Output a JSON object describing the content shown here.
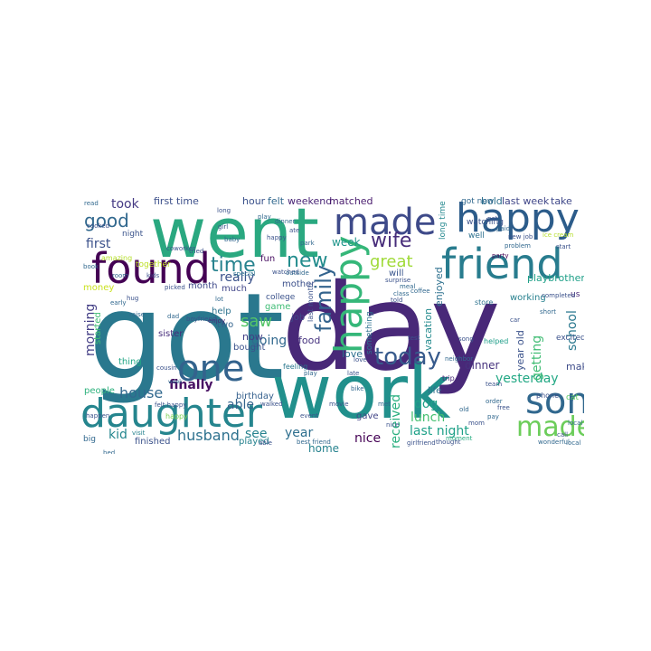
{
  "words": [
    {
      "text": "got",
      "color": "#2a788e"
    },
    {
      "text": "day",
      "color": "#482878"
    },
    {
      "text": "went",
      "color": "#2aa880"
    },
    {
      "text": "work",
      "color": "#21908c"
    },
    {
      "text": "made",
      "color": "#3e4a89"
    },
    {
      "text": "happy",
      "color": "#2c5c8a"
    },
    {
      "text": "found",
      "color": "#440154"
    },
    {
      "text": "friend",
      "color": "#287c8e"
    },
    {
      "text": "daughter",
      "color": "#25858e"
    },
    {
      "text": "happy",
      "color": "#35b779"
    },
    {
      "text": "one",
      "color": "#33638d"
    },
    {
      "text": "son",
      "color": "#31688e"
    },
    {
      "text": "made",
      "color": "#6ccd5a"
    },
    {
      "text": "family",
      "color": "#33638d"
    },
    {
      "text": "today",
      "color": "#375a8c"
    },
    {
      "text": "wife",
      "color": "#472c7a"
    },
    {
      "text": "good",
      "color": "#31688e"
    },
    {
      "text": "new",
      "color": "#228c8d"
    },
    {
      "text": "time",
      "color": "#26828e"
    },
    {
      "text": "house",
      "color": "#31688e"
    },
    {
      "text": "husband",
      "color": "#2d718e"
    },
    {
      "text": "school",
      "color": "#2a788e"
    },
    {
      "text": "great",
      "color": "#a0da39"
    },
    {
      "text": "took",
      "color": "#443983"
    },
    {
      "text": "first",
      "color": "#3b518b"
    },
    {
      "text": "last night",
      "color": "#1fa188"
    },
    {
      "text": "yesterday",
      "color": "#22a884"
    },
    {
      "text": "morning",
      "color": "#433e85"
    },
    {
      "text": "saw",
      "color": "#54c568"
    },
    {
      "text": "able",
      "color": "#33638d"
    },
    {
      "text": "going",
      "color": "#31688e"
    },
    {
      "text": "getting",
      "color": "#3fbc73"
    },
    {
      "text": "dinner",
      "color": "#46327e"
    },
    {
      "text": "dog",
      "color": "#1fa188"
    },
    {
      "text": "lunch",
      "color": "#44bf70"
    },
    {
      "text": "nice",
      "color": "#440154"
    },
    {
      "text": "kid",
      "color": "#24868e"
    },
    {
      "text": "finally",
      "color": "#471063"
    },
    {
      "text": "really",
      "color": "#3b528b"
    },
    {
      "text": "year",
      "color": "#2e6f8e"
    },
    {
      "text": "see",
      "color": "#26828e"
    },
    {
      "text": "received",
      "color": "#29af7f"
    },
    {
      "text": "make",
      "color": "#3e4c8a"
    },
    {
      "text": "week",
      "color": "#1f958b"
    },
    {
      "text": "home",
      "color": "#26828e"
    },
    {
      "text": "food",
      "color": "#46337f"
    },
    {
      "text": "love",
      "color": "#2d708e"
    },
    {
      "text": "now",
      "color": "#423f85"
    },
    {
      "text": "first time",
      "color": "#3c4f8a"
    },
    {
      "text": "hour",
      "color": "#3b528b"
    },
    {
      "text": "felt",
      "color": "#31688e"
    },
    {
      "text": "weekend",
      "color": "#482475"
    },
    {
      "text": "matched",
      "color": "#481b6d"
    },
    {
      "text": "bold",
      "color": "#2d708e"
    },
    {
      "text": "last week",
      "color": "#404688"
    },
    {
      "text": "take",
      "color": "#3f4889"
    },
    {
      "text": "playbrother",
      "color": "#1fa088"
    },
    {
      "text": "year old",
      "color": "#3b528b"
    },
    {
      "text": "vacation",
      "color": "#238a8d"
    },
    {
      "text": "enjoyed",
      "color": "#2d708e"
    },
    {
      "text": "working",
      "color": "#27808e"
    },
    {
      "text": "birthday",
      "color": "#35608d"
    },
    {
      "text": "bought",
      "color": "#3b528b"
    },
    {
      "text": "sister",
      "color": "#472d7b"
    },
    {
      "text": "game",
      "color": "#3dbc74"
    },
    {
      "text": "people",
      "color": "#2db27d"
    },
    {
      "text": "thing",
      "color": "#21a685"
    },
    {
      "text": "finished",
      "color": "#3b528b"
    },
    {
      "text": "played",
      "color": "#26828e"
    },
    {
      "text": "gave",
      "color": "#414487"
    },
    {
      "text": "job",
      "color": "#3e4a89"
    },
    {
      "text": "life",
      "color": "#2e6e8e"
    },
    {
      "text": "will",
      "color": "#39558c"
    },
    {
      "text": "mother",
      "color": "#3c508b"
    },
    {
      "text": "fun",
      "color": "#470e61"
    },
    {
      "text": "help",
      "color": "#2c728e"
    },
    {
      "text": "two",
      "color": "#33638d"
    },
    {
      "text": "much",
      "color": "#404588"
    },
    {
      "text": "month",
      "color": "#3e4989"
    },
    {
      "text": "money",
      "color": "#cae11f"
    },
    {
      "text": "night",
      "color": "#3a538b"
    },
    {
      "text": "together",
      "color": "#bddf26"
    },
    {
      "text": "started",
      "color": "#3fbc73"
    },
    {
      "text": "big",
      "color": "#31688e"
    },
    {
      "text": "college",
      "color": "#3b528b"
    },
    {
      "text": "something",
      "color": "#2d708e"
    },
    {
      "text": "long time",
      "color": "#23888e"
    },
    {
      "text": "got new",
      "color": "#31688e"
    },
    {
      "text": "watching",
      "color": "#3b528b"
    },
    {
      "text": "well",
      "color": "#2d708e"
    },
    {
      "text": "us",
      "color": "#482878"
    },
    {
      "text": "cat",
      "color": "#5ec962"
    },
    {
      "text": "excited",
      "color": "#3b528b"
    },
    {
      "text": "trip",
      "color": "#482878"
    },
    {
      "text": "helped",
      "color": "#1f9e89"
    },
    {
      "text": "store",
      "color": "#2c728e"
    },
    {
      "text": "phone",
      "color": "#3b528b"
    },
    {
      "text": "amazing",
      "color": "#b5de2b"
    },
    {
      "text": "happy",
      "color": "#7ad151"
    },
    {
      "text": "feeling",
      "color": "#2a788e"
    },
    {
      "text": "last month",
      "color": "#3b528b"
    },
    {
      "text": "special",
      "color": "#2c728e"
    },
    {
      "text": "watched",
      "color": "#3b528b"
    },
    {
      "text": "outside",
      "color": "#31688e"
    },
    {
      "text": "surprise",
      "color": "#3b528b"
    },
    {
      "text": "party",
      "color": "#440154"
    },
    {
      "text": "moment",
      "color": "#27ad81"
    },
    {
      "text": "thought",
      "color": "#3b528b"
    },
    {
      "text": "local",
      "color": "#31688e"
    },
    {
      "text": "coworker",
      "color": "#3b528b"
    },
    {
      "text": "visit",
      "color": "#26828e"
    },
    {
      "text": "enjoy",
      "color": "#482878"
    },
    {
      "text": "boyfriend",
      "color": "#3b528b"
    },
    {
      "text": "cousin",
      "color": "#3b528b"
    },
    {
      "text": "week",
      "color": "#31688e"
    },
    {
      "text": "walked",
      "color": "#3b528b"
    },
    {
      "text": "play",
      "color": "#31688e"
    },
    {
      "text": "event",
      "color": "#3b528b"
    },
    {
      "text": "movie",
      "color": "#3b528b"
    },
    {
      "text": "bike",
      "color": "#31688e"
    },
    {
      "text": "late",
      "color": "#3b528b"
    },
    {
      "text": "test",
      "color": "#3b528b"
    },
    {
      "text": "class",
      "color": "#31688e"
    },
    {
      "text": "team",
      "color": "#3b528b"
    },
    {
      "text": "neighbor",
      "color": "#31688e"
    },
    {
      "text": "girlfriend",
      "color": "#3b528b"
    },
    {
      "text": "meal",
      "color": "#31688e"
    },
    {
      "text": "told",
      "color": "#3b528b"
    },
    {
      "text": "coffee",
      "color": "#31688e"
    },
    {
      "text": "completed",
      "color": "#3b528b"
    },
    {
      "text": "problem",
      "color": "#31688e"
    },
    {
      "text": "pet",
      "color": "#3b528b"
    },
    {
      "text": "paid",
      "color": "#31688e"
    },
    {
      "text": "new job",
      "color": "#3b528b"
    },
    {
      "text": "ice cream",
      "color": "#b5de2b"
    },
    {
      "text": "start",
      "color": "#3b528b"
    },
    {
      "text": "short",
      "color": "#31688e"
    },
    {
      "text": "car",
      "color": "#3b528b"
    },
    {
      "text": "best friend",
      "color": "#31688e"
    },
    {
      "text": "call",
      "color": "#3b528b"
    },
    {
      "text": "wonderful",
      "color": "#31688e"
    },
    {
      "text": "able",
      "color": "#3b528b"
    },
    {
      "text": "lot",
      "color": "#31688e"
    },
    {
      "text": "felt happy",
      "color": "#3b528b"
    },
    {
      "text": "bed",
      "color": "#31688e"
    },
    {
      "text": "happen",
      "color": "#3b528b"
    },
    {
      "text": "raise",
      "color": "#31688e"
    },
    {
      "text": "kids",
      "color": "#3b528b"
    },
    {
      "text": "room",
      "color": "#31688e"
    },
    {
      "text": "picked",
      "color": "#3b528b"
    },
    {
      "text": "dad",
      "color": "#31688e"
    },
    {
      "text": "hug",
      "color": "#3b528b"
    },
    {
      "text": "early",
      "color": "#31688e"
    },
    {
      "text": "long",
      "color": "#3b528b"
    },
    {
      "text": "play",
      "color": "#31688e"
    },
    {
      "text": "happy",
      "color": "#3b528b"
    },
    {
      "text": "dinner",
      "color": "#31688e"
    },
    {
      "text": "ate",
      "color": "#3b528b"
    },
    {
      "text": "park",
      "color": "#31688e"
    },
    {
      "text": "girl",
      "color": "#3b528b"
    },
    {
      "text": "baby",
      "color": "#31688e"
    },
    {
      "text": "tried",
      "color": "#3b528b"
    },
    {
      "text": "read",
      "color": "#31688e"
    },
    {
      "text": "cooked",
      "color": "#3b528b"
    },
    {
      "text": "book",
      "color": "#31688e"
    },
    {
      "text": "love",
      "color": "#3b528b"
    },
    {
      "text": "met",
      "color": "#31688e"
    },
    {
      "text": "nice",
      "color": "#3b528b"
    },
    {
      "text": "old",
      "color": "#31688e"
    },
    {
      "text": "mom",
      "color": "#3b528b"
    },
    {
      "text": "pay",
      "color": "#31688e"
    },
    {
      "text": "free",
      "color": "#3b528b"
    },
    {
      "text": "order",
      "color": "#31688e"
    },
    {
      "text": "song",
      "color": "#3b528b"
    },
    {
      "text": "local",
      "color": "#31688e"
    }
  ]
}
